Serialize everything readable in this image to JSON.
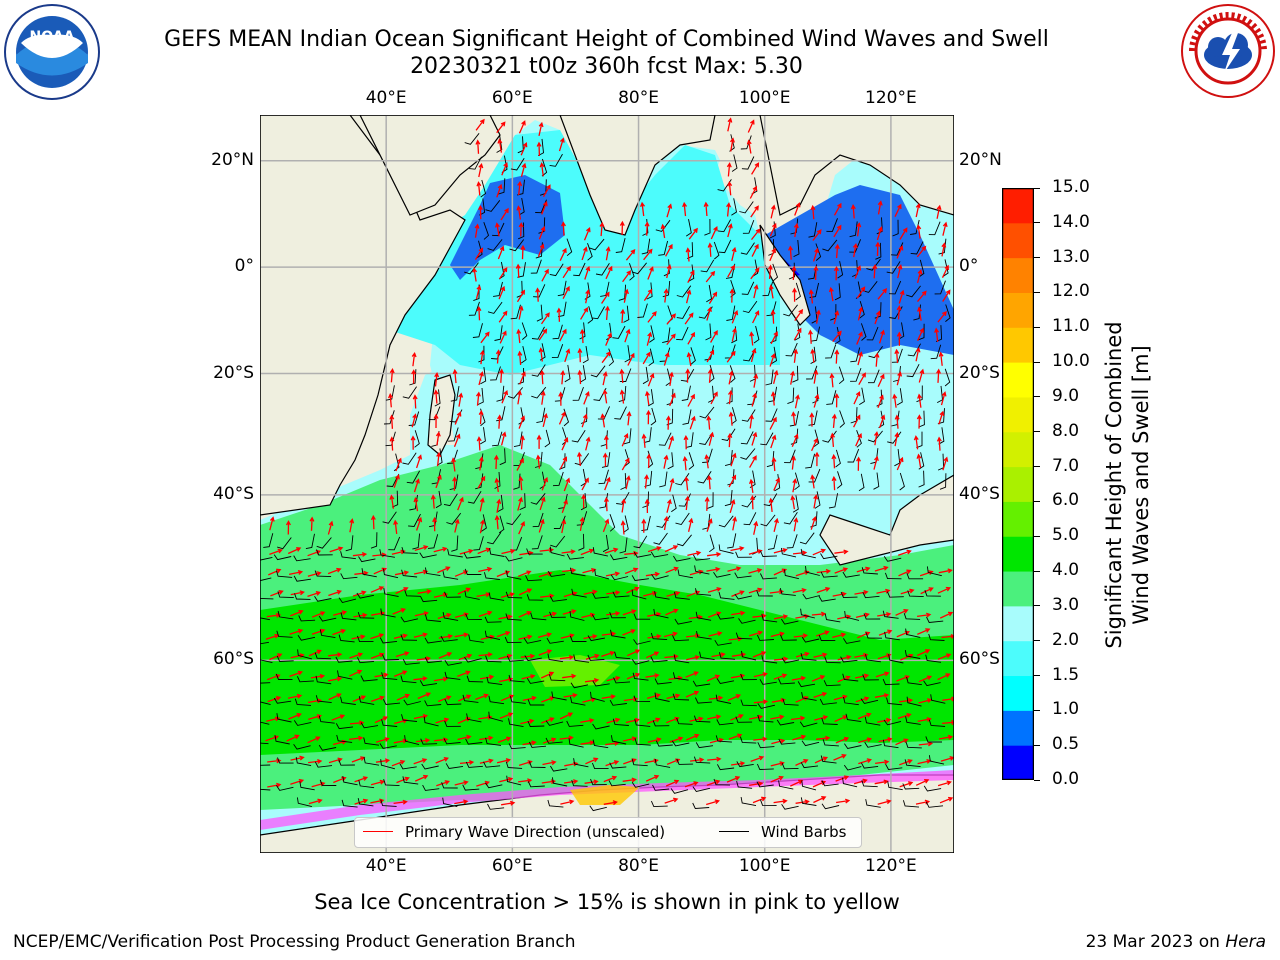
{
  "header": {
    "title_line1": "GEFS MEAN Indian Ocean Significant Height of Combined Wind Waves and Swell",
    "title_line2": "20230321 t00z 360h fcst   Max: 5.30"
  },
  "logos": {
    "left": {
      "name": "noaa-logo",
      "text": "NOAA"
    },
    "right": {
      "name": "nws-logo",
      "text": "NATIONAL WEATHER SERVICE"
    }
  },
  "map": {
    "lon_range": [
      20,
      130
    ],
    "lat_range": [
      -74,
      28
    ],
    "lon_ticks": [
      {
        "value": 40,
        "label": "40°E"
      },
      {
        "value": 60,
        "label": "60°E"
      },
      {
        "value": 80,
        "label": "80°E"
      },
      {
        "value": 100,
        "label": "100°E"
      },
      {
        "value": 120,
        "label": "120°E"
      }
    ],
    "lat_ticks": [
      {
        "value": 20,
        "label": "20°N"
      },
      {
        "value": 0,
        "label": "0°"
      },
      {
        "value": -20,
        "label": "20°S"
      },
      {
        "value": -40,
        "label": "40°S"
      },
      {
        "value": -60,
        "label": "60°S"
      }
    ],
    "legend": {
      "wave_direction": "Primary Wave Direction (unscaled)",
      "wind_barbs": "Wind Barbs",
      "wave_color": "#ff0000",
      "barb_color": "#000000"
    }
  },
  "colorbar": {
    "label_line1": "Significant Height of Combined",
    "label_line2": "Wind Waves and Swell [m]",
    "ticks": [
      "0.0",
      "0.5",
      "1.0",
      "1.5",
      "2.0",
      "3.0",
      "4.0",
      "5.0",
      "6.0",
      "7.0",
      "8.0",
      "9.0",
      "10.0",
      "11.0",
      "12.0",
      "13.0",
      "14.0",
      "15.0"
    ],
    "colors": [
      "#0000ff",
      "#0073ff",
      "#00ffff",
      "#4cfcfc",
      "#a8fcfc",
      "#4bf07d",
      "#00e600",
      "#64f000",
      "#aaf000",
      "#d2f000",
      "#f0f000",
      "#ffff00",
      "#ffc800",
      "#ffa500",
      "#ff8200",
      "#ff5000",
      "#ff1e00"
    ]
  },
  "ice_note": "Sea Ice Concentration > 15% is shown in pink to yellow",
  "footer": {
    "left": "NCEP/EMC/Verification Post Processing Product Generation Branch",
    "right_date": "23 Mar 2023 on ",
    "right_machine": "Hera"
  }
}
